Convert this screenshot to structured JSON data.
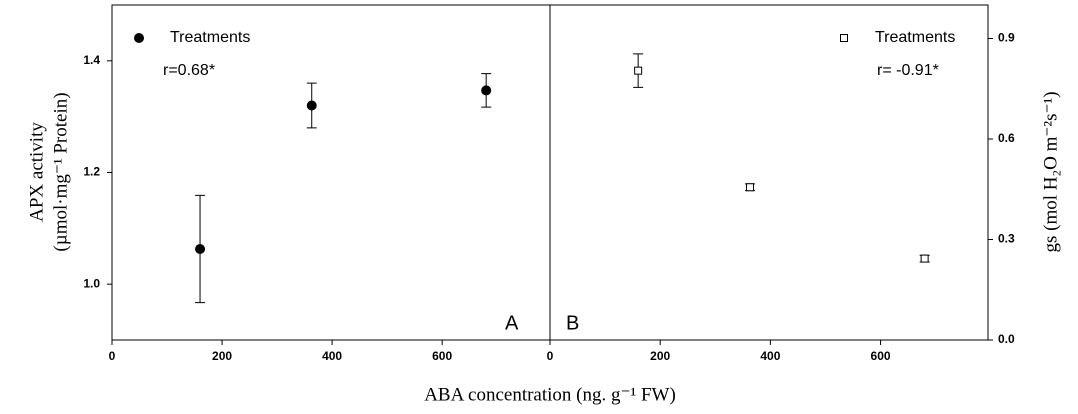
{
  "chart_data": [
    {
      "type": "scatter",
      "xlabel": "ABA concentration (ng. g⁻¹ FW)",
      "ylabel": [
        "APX activity",
        "(µmol·mg⁻¹ Protein)"
      ],
      "annotation": "r=0.68*",
      "panel_label": "A",
      "yaxis_side": "left",
      "x": [
        160,
        363,
        680
      ],
      "series": [
        {
          "name": "Treatments",
          "color": "#000000",
          "marker": "circle",
          "values": [
            1.063,
            1.32,
            1.347
          ],
          "errors": [
            0.096,
            0.04,
            0.03
          ]
        }
      ],
      "xlim": [
        0,
        796
      ],
      "xticks": [
        0,
        200,
        400,
        600
      ],
      "ylim": [
        0.9,
        1.5
      ],
      "yticks": [
        {
          "value": 1.0,
          "label": "1.0"
        },
        1.2,
        1.4
      ]
    },
    {
      "type": "scatter",
      "ylabel": "gs (mol H₂O m⁻²s⁻¹)",
      "annotation": "r= -0.91*",
      "panel_label": "B",
      "yaxis_side": "right",
      "x": [
        160,
        363,
        680
      ],
      "series": [
        {
          "name": "Treatments",
          "color": "#000000",
          "marker": "open-square",
          "values": [
            0.804,
            0.456,
            0.243
          ],
          "errors": [
            0.05,
            0.01,
            0.01
          ]
        }
      ],
      "xlim": [
        0,
        795
      ],
      "xticks": [
        0,
        200,
        400,
        600
      ],
      "ylim": [
        0,
        1.0
      ],
      "yticks": [
        {
          "value": 0,
          "label": "0.0"
        },
        0.3,
        0.6,
        0.9
      ]
    }
  ]
}
